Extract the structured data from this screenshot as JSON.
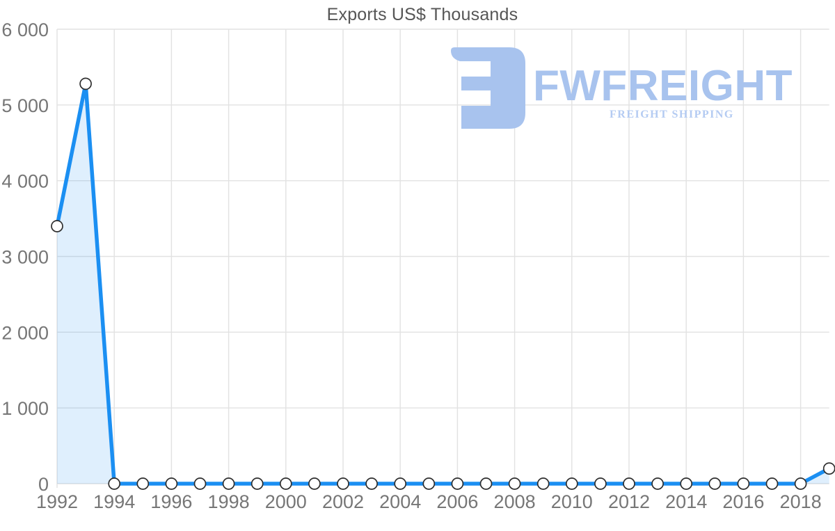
{
  "chart_data": {
    "type": "area",
    "title": "Exports US$ Thousands",
    "x": [
      1992,
      1993,
      1994,
      1995,
      1996,
      1997,
      1998,
      1999,
      2000,
      2001,
      2002,
      2003,
      2004,
      2005,
      2006,
      2007,
      2008,
      2009,
      2010,
      2011,
      2012,
      2013,
      2014,
      2015,
      2016,
      2017,
      2018,
      2019
    ],
    "values": [
      3400,
      5280,
      0,
      0,
      0,
      0,
      0,
      0,
      0,
      0,
      0,
      0,
      0,
      0,
      0,
      0,
      0,
      0,
      0,
      0,
      0,
      0,
      0,
      0,
      0,
      0,
      0,
      200
    ],
    "series_name": "Exports",
    "xlim": [
      1992,
      2019
    ],
    "ylim": [
      0,
      6000
    ],
    "x_ticks": [
      1992,
      1994,
      1996,
      1998,
      2000,
      2002,
      2004,
      2006,
      2008,
      2010,
      2012,
      2014,
      2016,
      2018
    ],
    "y_ticks": [
      {
        "v": 0,
        "label": "0"
      },
      {
        "v": 1000,
        "label": "1 000"
      },
      {
        "v": 2000,
        "label": "2 000"
      },
      {
        "v": 3000,
        "label": "3 000"
      },
      {
        "v": 4000,
        "label": "4 000"
      },
      {
        "v": 5000,
        "label": "5 000"
      },
      {
        "v": 6000,
        "label": "6 000"
      }
    ],
    "grid": true,
    "legend": "none",
    "line_color": "#1b8ff2",
    "area_fill": "rgba(27,143,242,0.14)",
    "marker_fill": "#ffffff",
    "marker_stroke": "#2e2e2e",
    "gridline_color": "#e2e2e2",
    "axis_label_color": "#767676",
    "title_color": "#565656"
  },
  "logo": {
    "brand": "FWFREIGHT",
    "subtitle": "FREIGHT SHIPPING",
    "brand_color": "#a8c3ee",
    "subtitle_color": "#b4cbf2"
  }
}
